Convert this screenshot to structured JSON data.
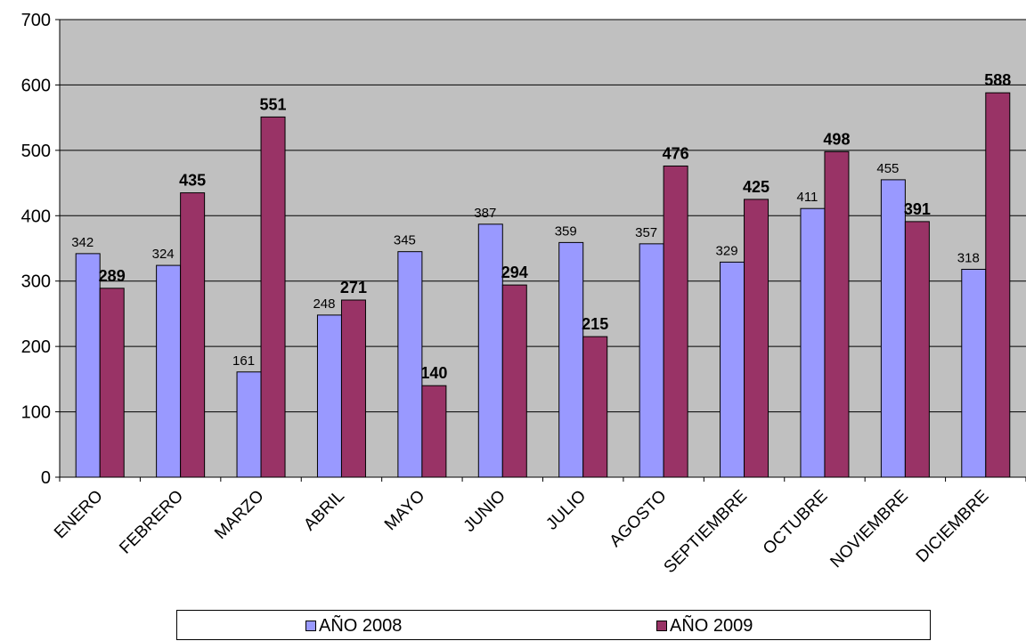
{
  "chart_data": {
    "type": "bar",
    "categories": [
      "ENERO",
      "FEBRERO",
      "MARZO",
      "ABRIL",
      "MAYO",
      "JUNIO",
      "JULIO",
      "AGOSTO",
      "SEPTIEMBRE",
      "OCTUBRE",
      "NOVIEMBRE",
      "DICIEMBRE"
    ],
    "series": [
      {
        "name": "AÑO 2008",
        "values": [
          342,
          324,
          161,
          248,
          345,
          387,
          359,
          357,
          329,
          411,
          455,
          318
        ],
        "color": "#9999ff",
        "label_style": "normal"
      },
      {
        "name": "AÑO 2009",
        "values": [
          289,
          435,
          551,
          271,
          140,
          294,
          215,
          476,
          425,
          498,
          391,
          588
        ],
        "color": "#993366",
        "label_style": "bold"
      }
    ],
    "ylim": [
      0,
      700
    ],
    "yticks": [
      0,
      100,
      200,
      300,
      400,
      500,
      600,
      700
    ],
    "title": "",
    "xlabel": "",
    "ylabel": "",
    "grid": true,
    "plot_background": "#c0c0c0",
    "legend_position": "bottom"
  }
}
